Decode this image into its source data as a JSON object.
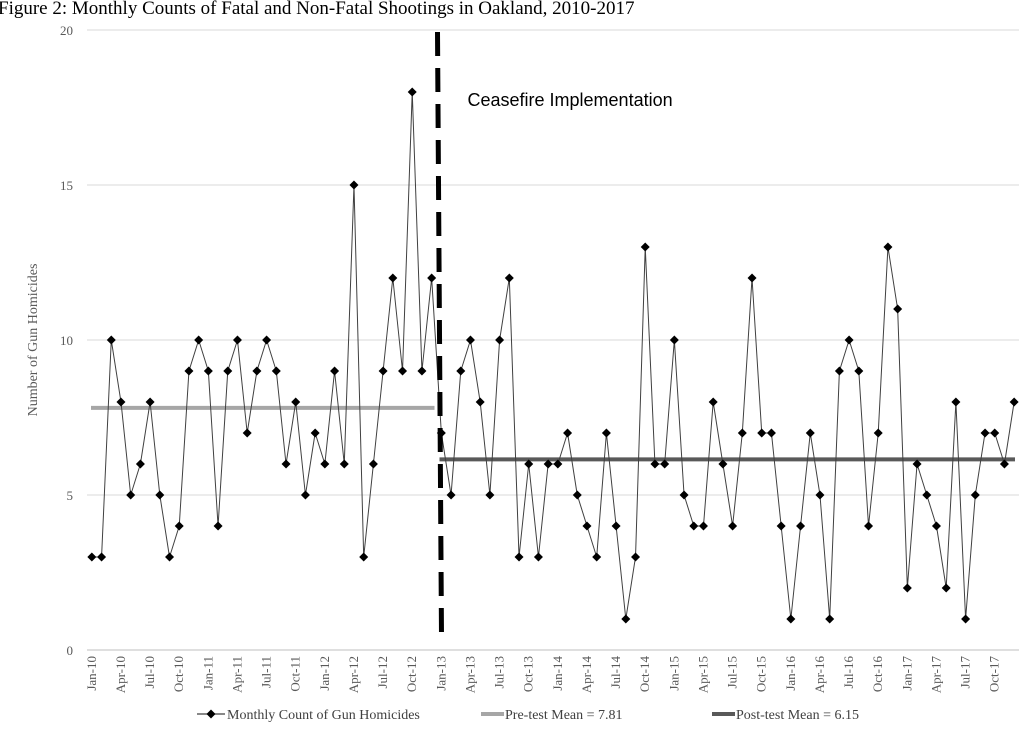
{
  "chart_data": {
    "type": "line",
    "title": "Figure 2: Monthly Counts of Fatal and Non-Fatal Shootings in Oakland, 2010-2017",
    "ylabel": "Number of Gun Homicides",
    "xlabel": "",
    "ylim": [
      0,
      20
    ],
    "yticks": [
      "0",
      "5",
      "10",
      "15",
      "20"
    ],
    "grid": true,
    "legend_position": "bottom",
    "intervention_label": "Ceasefire Implementation",
    "intervention_month": "Jan-13",
    "x_tick_labels": [
      "Jan-10",
      "Apr-10",
      "Jul-10",
      "Oct-10",
      "Jan-11",
      "Apr-11",
      "Jul-11",
      "Oct-11",
      "Jan-12",
      "Apr-12",
      "Jul-12",
      "Oct-12",
      "Jan-13",
      "Apr-13",
      "Jul-13",
      "Oct-13",
      "Jan-14",
      "Apr-14",
      "Jul-14",
      "Oct-14",
      "Jan-15",
      "Apr-15",
      "Jul-15",
      "Oct-15",
      "Jan-16",
      "Apr-16",
      "Jul-16",
      "Oct-16",
      "Jan-17",
      "Apr-17",
      "Jul-17",
      "Oct-17"
    ],
    "x": [
      "Jan-10",
      "Feb-10",
      "Mar-10",
      "Apr-10",
      "May-10",
      "Jun-10",
      "Jul-10",
      "Aug-10",
      "Sep-10",
      "Oct-10",
      "Nov-10",
      "Dec-10",
      "Jan-11",
      "Feb-11",
      "Mar-11",
      "Apr-11",
      "May-11",
      "Jun-11",
      "Jul-11",
      "Aug-11",
      "Sep-11",
      "Oct-11",
      "Nov-11",
      "Dec-11",
      "Jan-12",
      "Feb-12",
      "Mar-12",
      "Apr-12",
      "May-12",
      "Jun-12",
      "Jul-12",
      "Aug-12",
      "Sep-12",
      "Oct-12",
      "Nov-12",
      "Dec-12",
      "Jan-13",
      "Feb-13",
      "Mar-13",
      "Apr-13",
      "May-13",
      "Jun-13",
      "Jul-13",
      "Aug-13",
      "Sep-13",
      "Oct-13",
      "Nov-13",
      "Dec-13",
      "Jan-14",
      "Feb-14",
      "Mar-14",
      "Apr-14",
      "May-14",
      "Jun-14",
      "Jul-14",
      "Aug-14",
      "Sep-14",
      "Oct-14",
      "Nov-14",
      "Dec-14",
      "Jan-15",
      "Feb-15",
      "Mar-15",
      "Apr-15",
      "May-15",
      "Jun-15",
      "Jul-15",
      "Aug-15",
      "Sep-15",
      "Oct-15",
      "Nov-15",
      "Dec-15",
      "Jan-16",
      "Feb-16",
      "Mar-16",
      "Apr-16",
      "May-16",
      "Jun-16",
      "Jul-16",
      "Aug-16",
      "Sep-16",
      "Oct-16",
      "Nov-16",
      "Dec-16",
      "Jan-17",
      "Feb-17",
      "Mar-17",
      "Apr-17",
      "May-17",
      "Jun-17",
      "Jul-17",
      "Aug-17",
      "Sep-17",
      "Oct-17",
      "Nov-17",
      "Dec-17"
    ],
    "series": [
      {
        "name": "Monthly Count of Gun Homicides",
        "color": "#000000",
        "marker": "diamond",
        "values": [
          3,
          3,
          10,
          8,
          5,
          6,
          8,
          5,
          3,
          4,
          9,
          10,
          9,
          4,
          9,
          10,
          7,
          9,
          10,
          9,
          6,
          8,
          5,
          7,
          6,
          9,
          6,
          15,
          3,
          6,
          9,
          12,
          9,
          18,
          9,
          12,
          7,
          5,
          9,
          10,
          8,
          5,
          10,
          12,
          3,
          6,
          3,
          6,
          6,
          7,
          5,
          4,
          3,
          7,
          4,
          1,
          3,
          13,
          6,
          6,
          10,
          5,
          4,
          4,
          8,
          6,
          4,
          7,
          12,
          7,
          7,
          4,
          1,
          4,
          7,
          5,
          1,
          9,
          10,
          9,
          4,
          7,
          13,
          11,
          2,
          6,
          5,
          4,
          2,
          8,
          1,
          5,
          7,
          7,
          6,
          8
        ]
      },
      {
        "name": "Pre-test Mean = 7.81",
        "color": "#a6a6a6",
        "value": 7.81,
        "range": [
          "Jan-10",
          "Dec-12"
        ]
      },
      {
        "name": "Post-test Mean = 6.15",
        "color": "#595959",
        "value": 6.15,
        "range": [
          "Jan-13",
          "Dec-17"
        ]
      }
    ]
  }
}
